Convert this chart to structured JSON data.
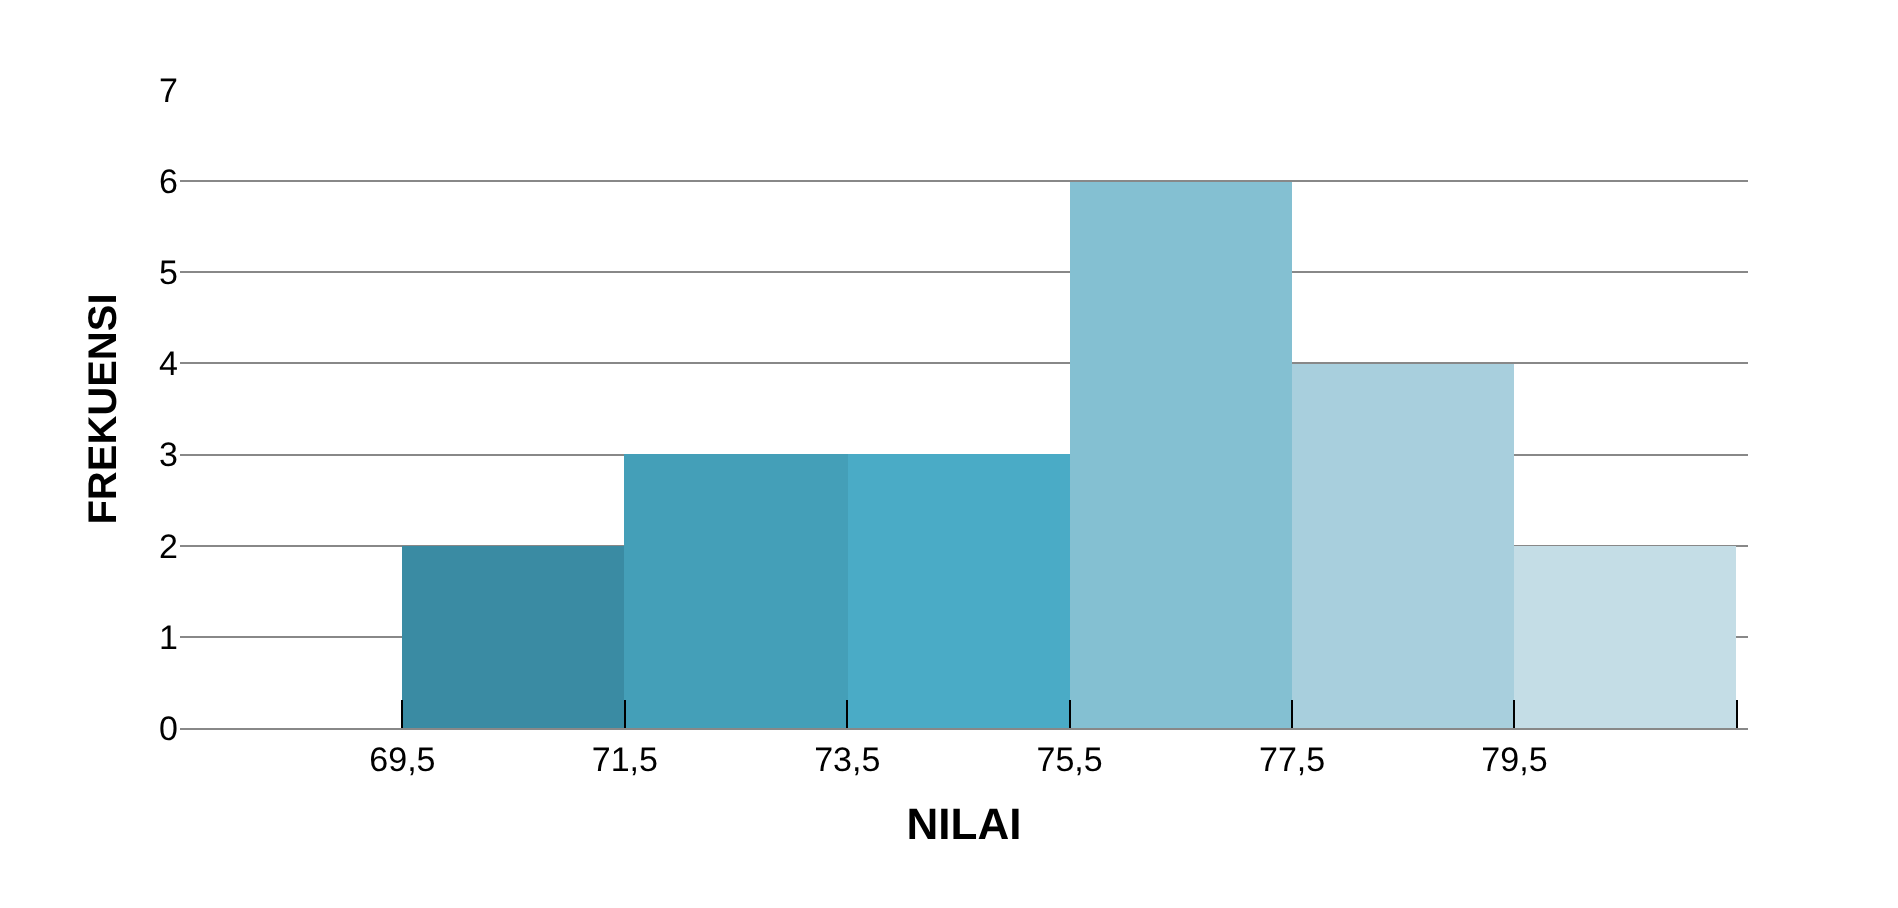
{
  "chart_data": {
    "type": "histogram",
    "xlabel": "NILAI",
    "ylabel": "FREKUENSI",
    "bins": [
      69.5,
      71.5,
      73.5,
      75.5,
      77.5,
      79.5,
      81.5
    ],
    "values": [
      2,
      3,
      3,
      6,
      4,
      2
    ],
    "colors": [
      "#3a8ba3",
      "#449fb8",
      "#4aabc6",
      "#84c0d2",
      "#a8cfdd",
      "#c4dde6"
    ],
    "xlim": [
      67.5,
      81.6
    ],
    "xticks": [
      {
        "value": 69.5,
        "label": "69,5"
      },
      {
        "value": 71.5,
        "label": "71,5"
      },
      {
        "value": 73.5,
        "label": "73,5"
      },
      {
        "value": 75.5,
        "label": "75,5"
      },
      {
        "value": 77.5,
        "label": "77,5"
      },
      {
        "value": 79.5,
        "label": "79,5"
      },
      {
        "value": 81.5,
        "label": null
      }
    ],
    "ylim": [
      0,
      7
    ],
    "yticks": [
      0,
      1,
      2,
      3,
      4,
      5,
      6,
      7
    ],
    "grid": "y"
  }
}
